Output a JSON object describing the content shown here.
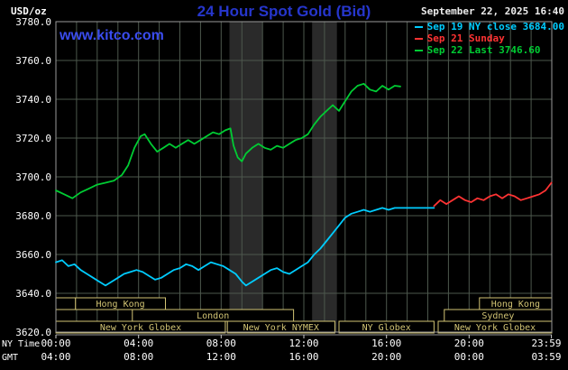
{
  "header": {
    "units": "USD/oz",
    "title": "24 Hour Spot Gold (Bid)",
    "datetime": "September 22, 2025 16:40",
    "watermark": "www.kitco.com"
  },
  "colors": {
    "title": "#2636cc",
    "watermark": "#3a4cee",
    "grid": "#4d584d",
    "frame": "#9a9a9a",
    "band": "#2a2a2a",
    "session": "#d2c474",
    "axis_text": "#ffffff",
    "sep19": "#00ccff",
    "sep21": "#ff3333",
    "sep22": "#00cc33"
  },
  "legend": [
    {
      "label": "Sep 19 NY close 3684.00",
      "color": "#00ccff"
    },
    {
      "label": "Sep 21 Sunday",
      "color": "#ff3333"
    },
    {
      "label": "Sep 22 Last 3746.60",
      "color": "#00cc33"
    }
  ],
  "axes": {
    "ny_label": "NY Time",
    "gmt_label": "GMT",
    "x_ticks": [
      {
        "h": 0,
        "ny": "00:00",
        "gmt": "04:00"
      },
      {
        "h": 4,
        "ny": "04:00",
        "gmt": "08:00"
      },
      {
        "h": 8,
        "ny": "08:00",
        "gmt": "12:00"
      },
      {
        "h": 12,
        "ny": "12:00",
        "gmt": "16:00"
      },
      {
        "h": 16,
        "ny": "16:00",
        "gmt": "20:00"
      },
      {
        "h": 20,
        "ny": "20:00",
        "gmt": "00:00"
      },
      {
        "h": 23.983,
        "ny": "23:59",
        "gmt": "03:59"
      }
    ],
    "y_ticks": [
      {
        "value": 3780,
        "label": "3780.0"
      },
      {
        "value": 3760,
        "label": "3760.0"
      },
      {
        "value": 3740,
        "label": "3740.0"
      },
      {
        "value": 3720,
        "label": "3720.0"
      },
      {
        "value": 3700,
        "label": "3700.0"
      },
      {
        "value": 3680,
        "label": "3680.0"
      },
      {
        "value": 3660,
        "label": "3660.0"
      },
      {
        "value": 3640,
        "label": "3640.0"
      },
      {
        "value": 3620,
        "label": "3620.0"
      }
    ]
  },
  "chart_data": {
    "type": "line",
    "title": "24 Hour Spot Gold (Bid)",
    "x_unit": "hours NY time",
    "y_unit": "USD/oz",
    "xlim": [
      0,
      24
    ],
    "ylim": [
      3620,
      3780
    ],
    "grid": true,
    "legend_position": "top-right",
    "shaded_bands": [
      {
        "from": 8.4,
        "to": 10.0
      },
      {
        "from": 12.4,
        "to": 13.6
      }
    ],
    "series": [
      {
        "id": "sep22",
        "name": "Sep 22 Last 3746.60",
        "color": "#00cc33",
        "points": [
          [
            0,
            3693
          ],
          [
            0.4,
            3691
          ],
          [
            0.8,
            3689
          ],
          [
            1.2,
            3692
          ],
          [
            1.6,
            3694
          ],
          [
            2,
            3696
          ],
          [
            2.4,
            3697
          ],
          [
            2.8,
            3698
          ],
          [
            3.2,
            3701
          ],
          [
            3.5,
            3706
          ],
          [
            3.8,
            3715
          ],
          [
            4.1,
            3721
          ],
          [
            4.3,
            3722
          ],
          [
            4.6,
            3717
          ],
          [
            4.9,
            3713
          ],
          [
            5.2,
            3715
          ],
          [
            5.5,
            3717
          ],
          [
            5.8,
            3715
          ],
          [
            6.1,
            3717
          ],
          [
            6.4,
            3719
          ],
          [
            6.7,
            3717
          ],
          [
            7,
            3719
          ],
          [
            7.3,
            3721
          ],
          [
            7.6,
            3723
          ],
          [
            7.9,
            3722
          ],
          [
            8.2,
            3724
          ],
          [
            8.45,
            3725
          ],
          [
            8.6,
            3716
          ],
          [
            8.8,
            3710
          ],
          [
            9,
            3708
          ],
          [
            9.2,
            3712
          ],
          [
            9.5,
            3715
          ],
          [
            9.8,
            3717
          ],
          [
            10.1,
            3715
          ],
          [
            10.4,
            3714
          ],
          [
            10.7,
            3716
          ],
          [
            11,
            3715
          ],
          [
            11.3,
            3717
          ],
          [
            11.6,
            3719
          ],
          [
            11.9,
            3720
          ],
          [
            12.2,
            3722
          ],
          [
            12.5,
            3727
          ],
          [
            12.8,
            3731
          ],
          [
            13.1,
            3734
          ],
          [
            13.4,
            3737
          ],
          [
            13.7,
            3734
          ],
          [
            14,
            3739
          ],
          [
            14.3,
            3744
          ],
          [
            14.6,
            3747
          ],
          [
            14.9,
            3748
          ],
          [
            15.2,
            3745
          ],
          [
            15.5,
            3744
          ],
          [
            15.8,
            3747
          ],
          [
            16.1,
            3745
          ],
          [
            16.4,
            3747
          ],
          [
            16.67,
            3746.6
          ]
        ]
      },
      {
        "id": "sep19",
        "name": "Sep 19 NY close 3684.00",
        "color": "#00ccff",
        "points": [
          [
            0,
            3656
          ],
          [
            0.3,
            3657
          ],
          [
            0.6,
            3654
          ],
          [
            0.9,
            3655
          ],
          [
            1.2,
            3652
          ],
          [
            1.5,
            3650
          ],
          [
            1.8,
            3648
          ],
          [
            2.1,
            3646
          ],
          [
            2.4,
            3644
          ],
          [
            2.7,
            3646
          ],
          [
            3,
            3648
          ],
          [
            3.3,
            3650
          ],
          [
            3.6,
            3651
          ],
          [
            3.9,
            3652
          ],
          [
            4.2,
            3651
          ],
          [
            4.5,
            3649
          ],
          [
            4.8,
            3647
          ],
          [
            5.1,
            3648
          ],
          [
            5.4,
            3650
          ],
          [
            5.7,
            3652
          ],
          [
            6,
            3653
          ],
          [
            6.3,
            3655
          ],
          [
            6.6,
            3654
          ],
          [
            6.9,
            3652
          ],
          [
            7.2,
            3654
          ],
          [
            7.5,
            3656
          ],
          [
            7.8,
            3655
          ],
          [
            8.1,
            3654
          ],
          [
            8.4,
            3652
          ],
          [
            8.7,
            3650
          ],
          [
            9,
            3646
          ],
          [
            9.2,
            3644
          ],
          [
            9.5,
            3646
          ],
          [
            9.8,
            3648
          ],
          [
            10.1,
            3650
          ],
          [
            10.4,
            3652
          ],
          [
            10.7,
            3653
          ],
          [
            11,
            3651
          ],
          [
            11.3,
            3650
          ],
          [
            11.6,
            3652
          ],
          [
            11.9,
            3654
          ],
          [
            12.2,
            3656
          ],
          [
            12.5,
            3660
          ],
          [
            12.8,
            3663
          ],
          [
            13.1,
            3667
          ],
          [
            13.4,
            3671
          ],
          [
            13.7,
            3675
          ],
          [
            14,
            3679
          ],
          [
            14.3,
            3681
          ],
          [
            14.6,
            3682
          ],
          [
            14.9,
            3683
          ],
          [
            15.2,
            3682
          ],
          [
            15.5,
            3683
          ],
          [
            15.8,
            3684
          ],
          [
            16.1,
            3683
          ],
          [
            16.4,
            3684
          ],
          [
            16.8,
            3684
          ],
          [
            17.5,
            3684
          ],
          [
            18.3,
            3684
          ]
        ]
      },
      {
        "id": "sep21",
        "name": "Sep 21 Sunday",
        "color": "#ff3333",
        "points": [
          [
            18.3,
            3685
          ],
          [
            18.6,
            3688
          ],
          [
            18.9,
            3686
          ],
          [
            19.2,
            3688
          ],
          [
            19.5,
            3690
          ],
          [
            19.8,
            3688
          ],
          [
            20.1,
            3687
          ],
          [
            20.4,
            3689
          ],
          [
            20.7,
            3688
          ],
          [
            21,
            3690
          ],
          [
            21.3,
            3691
          ],
          [
            21.6,
            3689
          ],
          [
            21.9,
            3691
          ],
          [
            22.2,
            3690
          ],
          [
            22.5,
            3688
          ],
          [
            22.8,
            3689
          ],
          [
            23.1,
            3690
          ],
          [
            23.4,
            3691
          ],
          [
            23.7,
            3693
          ],
          [
            23.983,
            3697
          ]
        ]
      }
    ],
    "sessions": [
      {
        "row": 0,
        "from": 0,
        "to": 0.95,
        "label": ""
      },
      {
        "row": 0,
        "from": 0.95,
        "to": 5.3,
        "label": "Hong Kong"
      },
      {
        "row": 0,
        "from": 20.5,
        "to": 24,
        "label": "Hong Kong"
      },
      {
        "row": 1,
        "from": 3.7,
        "to": 11.5,
        "label": "London"
      },
      {
        "row": 1,
        "from": 18.8,
        "to": 24,
        "label": "Sydney"
      },
      {
        "row": 2,
        "from": 0,
        "to": 8.2,
        "label": "New York Globex"
      },
      {
        "row": 2,
        "from": 8.3,
        "to": 13.5,
        "label": "New York NYMEX"
      },
      {
        "row": 2,
        "from": 13.7,
        "to": 18.3,
        "label": "NY Globex"
      },
      {
        "row": 2,
        "from": 18.5,
        "to": 24,
        "label": "New York Globex"
      }
    ]
  }
}
